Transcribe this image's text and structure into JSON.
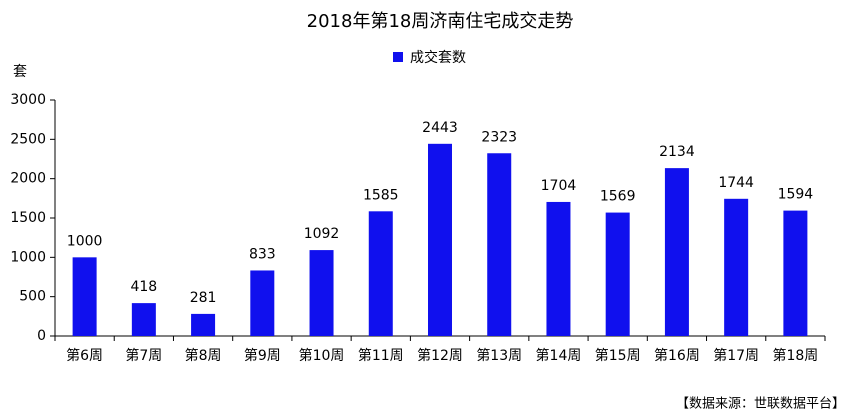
{
  "chart_data": {
    "type": "bar",
    "title": "2018年第18周济南住宅成交走势",
    "legend": [
      "成交套数"
    ],
    "y_label": "套",
    "categories": [
      "第6周",
      "第7周",
      "第8周",
      "第9周",
      "第10周",
      "第11周",
      "第12周",
      "第13周",
      "第14周",
      "第15周",
      "第16周",
      "第17周",
      "第18周"
    ],
    "series": [
      {
        "name": "成交套数",
        "color": "#1010ee",
        "values": [
          1000,
          418,
          281,
          833,
          1092,
          1585,
          2443,
          2323,
          1704,
          1569,
          2134,
          1744,
          1594
        ]
      }
    ],
    "ylim": [
      0,
      3000
    ],
    "yticks": [
      0,
      500,
      1000,
      1500,
      2000,
      2500,
      3000
    ],
    "grid": false,
    "source": "【数据来源：世联数据平台】"
  }
}
